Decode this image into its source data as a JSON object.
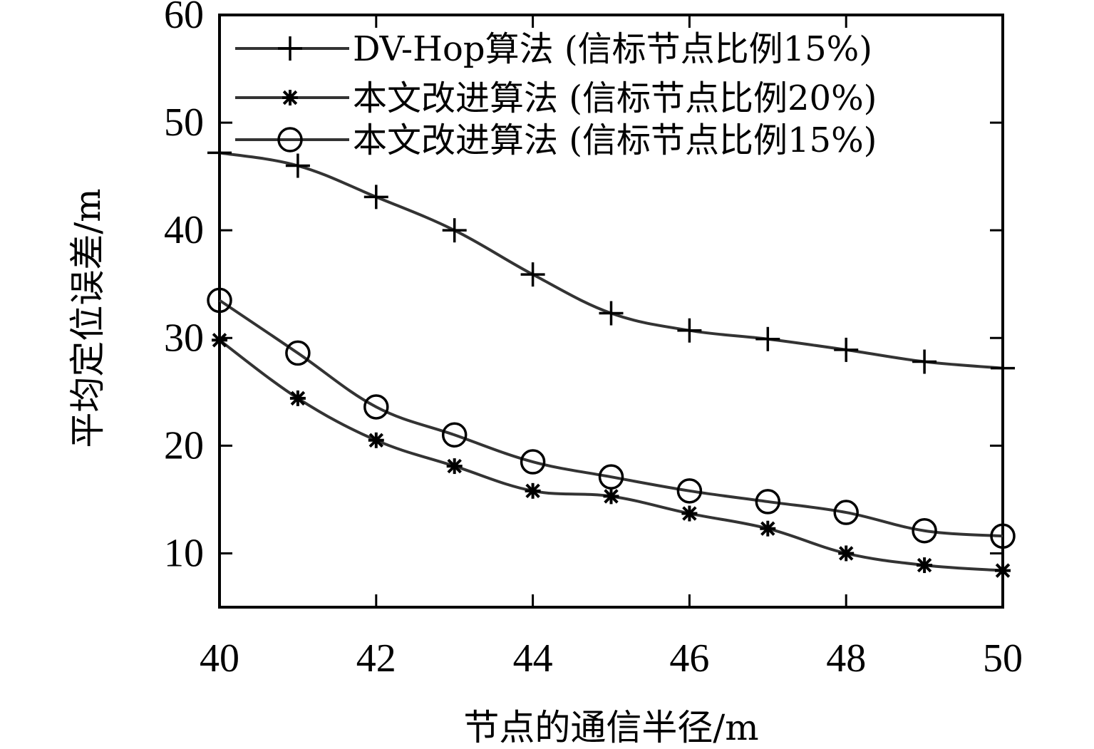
{
  "chart_data": {
    "type": "line",
    "xlabel": "节点的通信半径/m",
    "ylabel": "平均定位误差/m",
    "xlim": [
      40,
      50
    ],
    "ylim": [
      5,
      60
    ],
    "x_ticks": [
      40,
      42,
      44,
      46,
      48,
      50
    ],
    "y_ticks": [
      10,
      20,
      30,
      40,
      50,
      60
    ],
    "x_tick_labels": [
      "40",
      "42",
      "44",
      "46",
      "48",
      "50"
    ],
    "y_tick_labels": [
      "10",
      "20",
      "30",
      "40",
      "50",
      "60"
    ],
    "x": [
      40,
      41,
      42,
      43,
      44,
      45,
      46,
      47,
      48,
      49,
      50
    ],
    "legend_position": "top-right",
    "grid": false,
    "series": [
      {
        "name": "DV-Hop算法 (信标节点比例15%)",
        "marker": "plus",
        "color": "#333333",
        "values": [
          47.2,
          46.0,
          43.1,
          40.0,
          35.9,
          32.3,
          30.7,
          29.9,
          28.9,
          27.8,
          27.2
        ]
      },
      {
        "name": "本文改进算法 (信标节点比例20%)",
        "marker": "star",
        "color": "#333333",
        "values": [
          29.8,
          24.4,
          20.5,
          18.1,
          15.8,
          15.3,
          13.7,
          12.3,
          10.0,
          8.9,
          8.4
        ]
      },
      {
        "name": "本文改进算法 (信标节点比例15%)",
        "marker": "circle",
        "color": "#333333",
        "values": [
          33.5,
          28.6,
          23.6,
          21.0,
          18.5,
          17.1,
          15.8,
          14.8,
          13.8,
          12.1,
          11.6
        ]
      }
    ]
  }
}
